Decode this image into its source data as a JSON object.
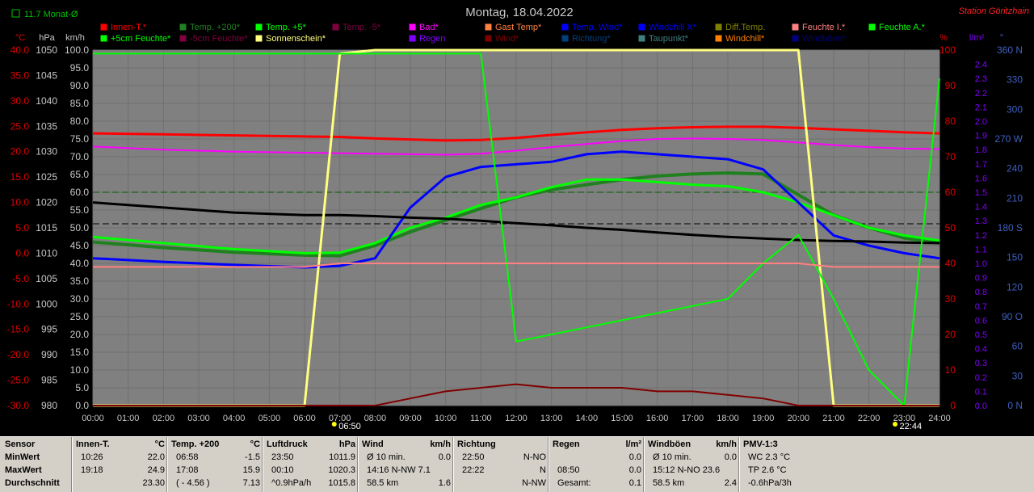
{
  "header": {
    "title": "Montag, 18.04.2022",
    "station": "Station Göritzhain",
    "month_avg_label": "11.7 Monat-Ø"
  },
  "axes_units": {
    "temp": "°C",
    "pressure": "hPa",
    "speed": "km/h",
    "percent": "%",
    "rain": "l/m²",
    "direction": "°"
  },
  "axes_ticks": {
    "temp": [
      "40.0",
      "35.0",
      "30.0",
      "25.0",
      "20.0",
      "15.0",
      "10.0",
      "5.0",
      "0.0",
      "-5.0",
      "-10.0",
      "-15.0",
      "-20.0",
      "-25.0",
      "-30.0"
    ],
    "pressure": [
      "1050",
      "1045",
      "1040",
      "1035",
      "1030",
      "1025",
      "1020",
      "1015",
      "1010",
      "1005",
      "1000",
      "995",
      "990",
      "985",
      "980"
    ],
    "speed": [
      "100.0",
      "95.0",
      "90.0",
      "85.0",
      "80.0",
      "75.0",
      "70.0",
      "65.0",
      "60.0",
      "55.0",
      "50.0",
      "45.0",
      "40.0",
      "35.0",
      "30.0",
      "25.0",
      "20.0",
      "15.0",
      "10.0",
      "5.0",
      "0.0"
    ],
    "percent": [
      "100",
      "90",
      "80",
      "70",
      "60",
      "50",
      "40",
      "30",
      "20",
      "10",
      "0"
    ],
    "rain": [
      "2.4",
      "2.3",
      "2.2",
      "2.1",
      "2.0",
      "1.9",
      "1.8",
      "1.7",
      "1.6",
      "1.5",
      "1.4",
      "1.3",
      "1.2",
      "1.1",
      "1.0",
      "0.9",
      "0.8",
      "0.7",
      "0.6",
      "0.5",
      "0.4",
      "0.3",
      "0.2",
      "0.1",
      "0.0"
    ],
    "direction": [
      "360 N",
      "330",
      "300",
      "270 W",
      "240",
      "210",
      "180 S",
      "150",
      "120",
      "90 O",
      "60",
      "30",
      "0 N"
    ],
    "time": [
      "00:00",
      "01:00",
      "02:00",
      "03:00",
      "04:00",
      "05:00",
      "06:00",
      "07:00",
      "08:00",
      "09:00",
      "10:00",
      "11:00",
      "12:00",
      "13:00",
      "14:00",
      "15:00",
      "16:00",
      "17:00",
      "18:00",
      "19:00",
      "20:00",
      "21:00",
      "22:00",
      "23:00",
      "24:00"
    ]
  },
  "legend": [
    {
      "label": "Innen-T.*",
      "color": "#ff0000"
    },
    {
      "label": "Temp. +200*",
      "color": "#208020"
    },
    {
      "label": "Temp. +5*",
      "color": "#00ff00"
    },
    {
      "label": "Temp. -5*",
      "color": "#800040"
    },
    {
      "label": "Bad*",
      "color": "#ff00ff"
    },
    {
      "label": "Gast Temp*",
      "color": "#ff8040"
    },
    {
      "label": "Temp. Wind*",
      "color": "#0000ff"
    },
    {
      "label": "Windchill X*",
      "color": "#0000ff"
    },
    {
      "label": "Diff.Temp.",
      "color": "#808000"
    },
    {
      "label": "Feuchte I.*",
      "color": "#ff8080"
    },
    {
      "label": "Feuchte A.*",
      "color": "#00ff00"
    },
    {
      "label": "+5cm Feuchte*",
      "color": "#00ff00"
    },
    {
      "label": "-5cm Feuchte*",
      "color": "#800040"
    },
    {
      "label": "Sonnenschein*",
      "color": "#ffff80"
    },
    {
      "label": "Luftdruck*",
      "color": "#000000"
    },
    {
      "label": "Regen",
      "color": "#8000ff"
    },
    {
      "label": "Wind*",
      "color": "#800000"
    },
    {
      "label": "Richtung*",
      "color": "#004080"
    },
    {
      "label": "Taupunkt*",
      "color": "#408080"
    },
    {
      "label": "Windchill*",
      "color": "#ff8000"
    },
    {
      "label": "Windböen*",
      "color": "#000080"
    }
  ],
  "sun_markers": {
    "sunrise": "06:50",
    "sunset": "22:44"
  },
  "chart_data": {
    "type": "line",
    "title": "Montag, 18.04.2022",
    "xlabel": "",
    "x": [
      0,
      2,
      4,
      6,
      7,
      8,
      9,
      10,
      11,
      12,
      13,
      14,
      15,
      16,
      17,
      18,
      19,
      20,
      21,
      22,
      23,
      24
    ],
    "series": [
      {
        "name": "Innen-T.*",
        "axis": "temp",
        "color": "#ff0000",
        "values": [
          23.6,
          23.4,
          23.2,
          23.0,
          22.9,
          22.6,
          22.4,
          22.2,
          22.3,
          22.7,
          23.3,
          23.8,
          24.3,
          24.6,
          24.8,
          24.9,
          24.9,
          24.7,
          24.4,
          24.1,
          23.8,
          23.6
        ]
      },
      {
        "name": "Temp. +200*",
        "axis": "temp",
        "color": "#208020",
        "values": [
          2.2,
          1.1,
          0.2,
          -0.4,
          -0.5,
          1.5,
          4.2,
          6.5,
          8.8,
          11.0,
          12.5,
          13.5,
          14.5,
          15.2,
          15.6,
          15.8,
          15.6,
          11.5,
          7.5,
          5.0,
          3.0,
          2.0
        ]
      },
      {
        "name": "Temp. +5*",
        "axis": "temp",
        "color": "#00ff00",
        "values": [
          3.2,
          2.0,
          0.8,
          0.0,
          0.1,
          2.0,
          5.0,
          7.0,
          9.5,
          11.0,
          13.0,
          14.5,
          14.5,
          14.0,
          13.5,
          13.2,
          12.0,
          10.0,
          7.5,
          5.0,
          3.5,
          2.5
        ]
      },
      {
        "name": "Temp. Wind*",
        "axis": "temp",
        "color": "#0000ff",
        "values": [
          -1.0,
          -1.7,
          -2.3,
          -2.8,
          -2.5,
          -1.0,
          9.0,
          15.0,
          17.0,
          17.5,
          18.0,
          19.5,
          20.0,
          19.5,
          19.0,
          18.5,
          16.5,
          10.0,
          3.5,
          1.5,
          0.0,
          -1.0
        ]
      },
      {
        "name": "Bad*",
        "axis": "temp",
        "color": "#ff00ff",
        "values": [
          21.0,
          20.4,
          20.0,
          19.8,
          19.7,
          19.6,
          19.5,
          19.4,
          19.6,
          20.2,
          20.9,
          21.5,
          22.1,
          22.5,
          22.6,
          22.5,
          22.3,
          21.8,
          21.3,
          20.9,
          20.6,
          20.5
        ]
      },
      {
        "name": "Luftdruck*",
        "axis": "pressure",
        "color": "#000000",
        "values": [
          1020.0,
          1019.0,
          1018.0,
          1017.5,
          1017.5,
          1017.3,
          1017.0,
          1016.8,
          1016.4,
          1015.9,
          1015.5,
          1015.0,
          1014.6,
          1014.1,
          1013.6,
          1013.2,
          1012.9,
          1012.6,
          1012.4,
          1012.3,
          1012.1,
          1012.0
        ]
      },
      {
        "name": "Sonnenschein*",
        "axis": "percent",
        "color": "#ffff80",
        "values": [
          0,
          0,
          0,
          0,
          99,
          100,
          100,
          100,
          100,
          100,
          100,
          100,
          100,
          100,
          100,
          100,
          100,
          100,
          0,
          0,
          0,
          0
        ]
      },
      {
        "name": "Feuchte A.*",
        "axis": "percent",
        "color": "#00ff00",
        "values": [
          99,
          99,
          99,
          99,
          99,
          99,
          99,
          99,
          99,
          18,
          20,
          22,
          24,
          26,
          28,
          30,
          40,
          48,
          30,
          10,
          0,
          92
        ]
      },
      {
        "name": "Wind*",
        "axis": "speed",
        "color": "#800000",
        "values": [
          0,
          0,
          0,
          0,
          0,
          0,
          2,
          4,
          5,
          6,
          5,
          5,
          5,
          4,
          4,
          3,
          2,
          0,
          0,
          0,
          0,
          0
        ]
      },
      {
        "name": "Feuchte I.*",
        "axis": "percent",
        "color": "#ff8080",
        "values": [
          39,
          39,
          39,
          39,
          40,
          40,
          40,
          40,
          40,
          40,
          40,
          40,
          40,
          40,
          40,
          40,
          40,
          40,
          39,
          39,
          39,
          39
        ]
      }
    ]
  },
  "footer": {
    "row_labels": [
      "Sensor",
      "MinWert",
      "MaxWert",
      "Durchschnitt"
    ],
    "columns": [
      {
        "title": "Innen-T.",
        "unit": "°C",
        "rows": [
          [
            "10:26",
            "22.0"
          ],
          [
            "19:18",
            "24.9"
          ],
          [
            "",
            "23.30"
          ]
        ]
      },
      {
        "title": "Temp. +200",
        "unit": "°C",
        "rows": [
          [
            "06:58",
            "-1.5"
          ],
          [
            "17:08",
            "15.9"
          ],
          [
            "( - 4.56 )",
            "7.13"
          ]
        ]
      },
      {
        "title": "Luftdruck",
        "unit": "hPa",
        "rows": [
          [
            "23:50",
            "1011.9"
          ],
          [
            "00:10",
            "1020.3"
          ],
          [
            "^0.9hPa/h",
            "1015.8"
          ]
        ]
      },
      {
        "title": "Wind",
        "unit": "km/h",
        "rows": [
          [
            "Ø 10 min.",
            "0.0"
          ],
          [
            "14:16  N-NW 7.1",
            ""
          ],
          [
            "58.5 km",
            "1.6"
          ]
        ]
      },
      {
        "title": "Richtung",
        "unit": "",
        "rows": [
          [
            "22:50",
            "N-NO"
          ],
          [
            "22:22",
            "N"
          ],
          [
            "",
            "N-NW"
          ]
        ]
      },
      {
        "title": "Regen",
        "unit": "l/m²",
        "rows": [
          [
            "",
            "0.0"
          ],
          [
            "08:50",
            "0.0"
          ],
          [
            "Gesamt:",
            "0.1"
          ]
        ]
      },
      {
        "title": "Windböen",
        "unit": "km/h",
        "rows": [
          [
            "Ø 10 min.",
            "0.0"
          ],
          [
            "15:12  N-NO 23.6",
            ""
          ],
          [
            "58.5 km",
            "2.4"
          ]
        ]
      },
      {
        "title": "PMV-1:3",
        "unit": "",
        "rows": [
          [
            "WC 2.3 °C",
            ""
          ],
          [
            "TP 2.6 °C",
            ""
          ],
          [
            "-0.6hPa/3h",
            ""
          ]
        ]
      }
    ]
  }
}
